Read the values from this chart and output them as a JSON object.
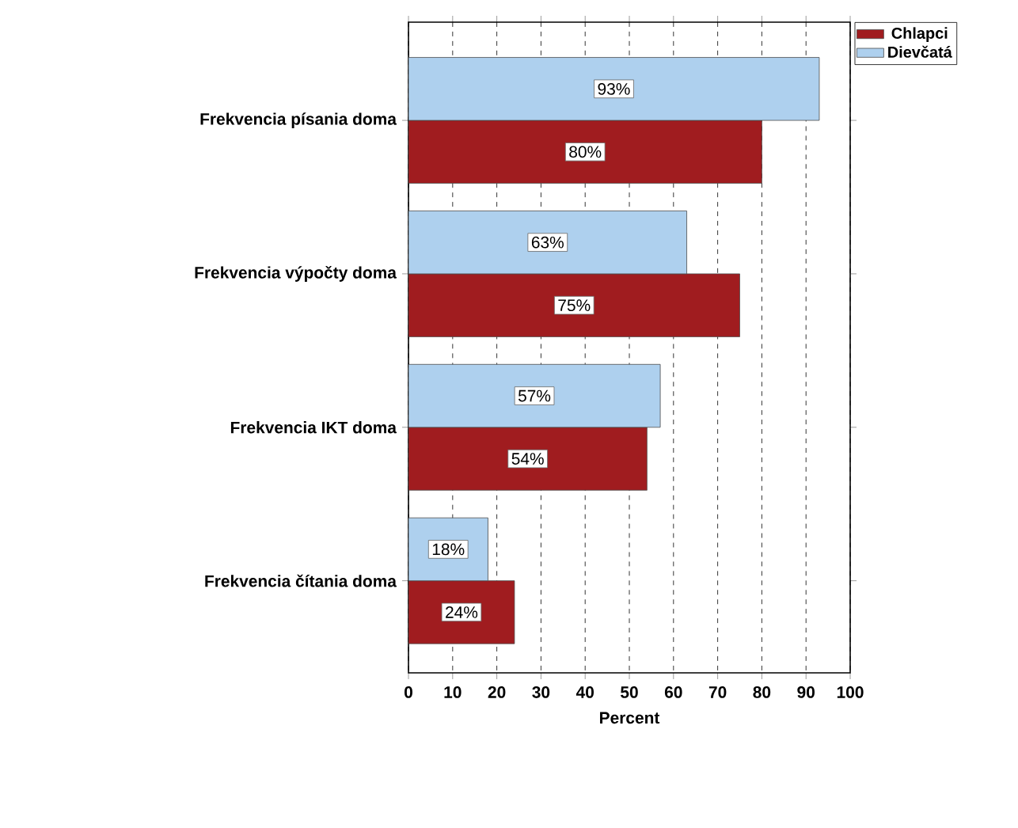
{
  "chart_data": {
    "type": "bar",
    "orientation": "horizontal",
    "categories": [
      "Frekvencia písania doma",
      "Frekvencia výpočty doma",
      "Frekvencia IKT doma",
      "Frekvencia čítania doma"
    ],
    "series": [
      {
        "name": "Chlapci",
        "color": "#a01c1f",
        "values": [
          80,
          75,
          54,
          24
        ],
        "value_labels": [
          "80%",
          "75%",
          "54%",
          "24%"
        ]
      },
      {
        "name": "Dievčatá",
        "color": "#aed0ee",
        "values": [
          93,
          63,
          57,
          18
        ],
        "value_labels": [
          "93%",
          "63%",
          "57%",
          "18%"
        ]
      }
    ],
    "xlabel": "Percent",
    "xlim": [
      0,
      100
    ],
    "xticks": [
      0,
      10,
      20,
      30,
      40,
      50,
      60,
      70,
      80,
      90,
      100
    ],
    "grid": "x",
    "legend": "top right"
  }
}
